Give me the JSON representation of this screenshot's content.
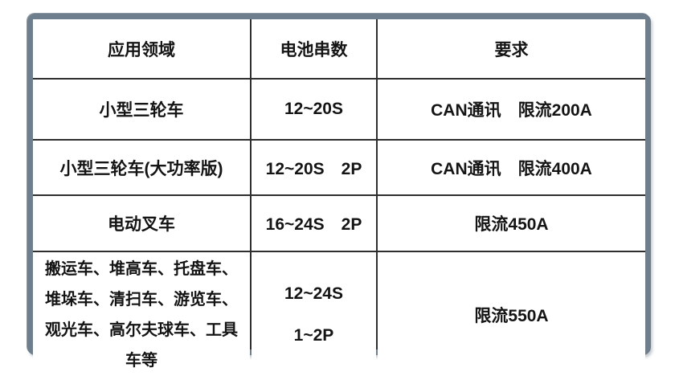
{
  "frame": {
    "border_color": "#6f7e8c",
    "grid_line_color": "#2e2e2e",
    "background": "#ffffff",
    "text_color": "#141414"
  },
  "table": {
    "headers": {
      "application": "应用领域",
      "battery_strings": "电池串数",
      "requirement": "要求"
    },
    "rows": [
      {
        "application": "小型三轮车",
        "battery_strings": "12~20S",
        "requirement": "CAN通讯　限流200A"
      },
      {
        "application": "小型三轮车(大功率版)",
        "battery_strings": "12~20S　2P",
        "requirement": "CAN通讯　限流400A"
      },
      {
        "application": "电动叉车",
        "battery_strings": "16~24S　2P",
        "requirement": "限流450A"
      },
      {
        "application": "搬运车、堆高车、托盘车、堆垛车、清扫车、游览车、观光车、高尔夫球车、工具车等",
        "battery_strings_line1": "12~24S",
        "battery_strings_line2": "1~2P",
        "requirement": "限流550A"
      }
    ]
  }
}
